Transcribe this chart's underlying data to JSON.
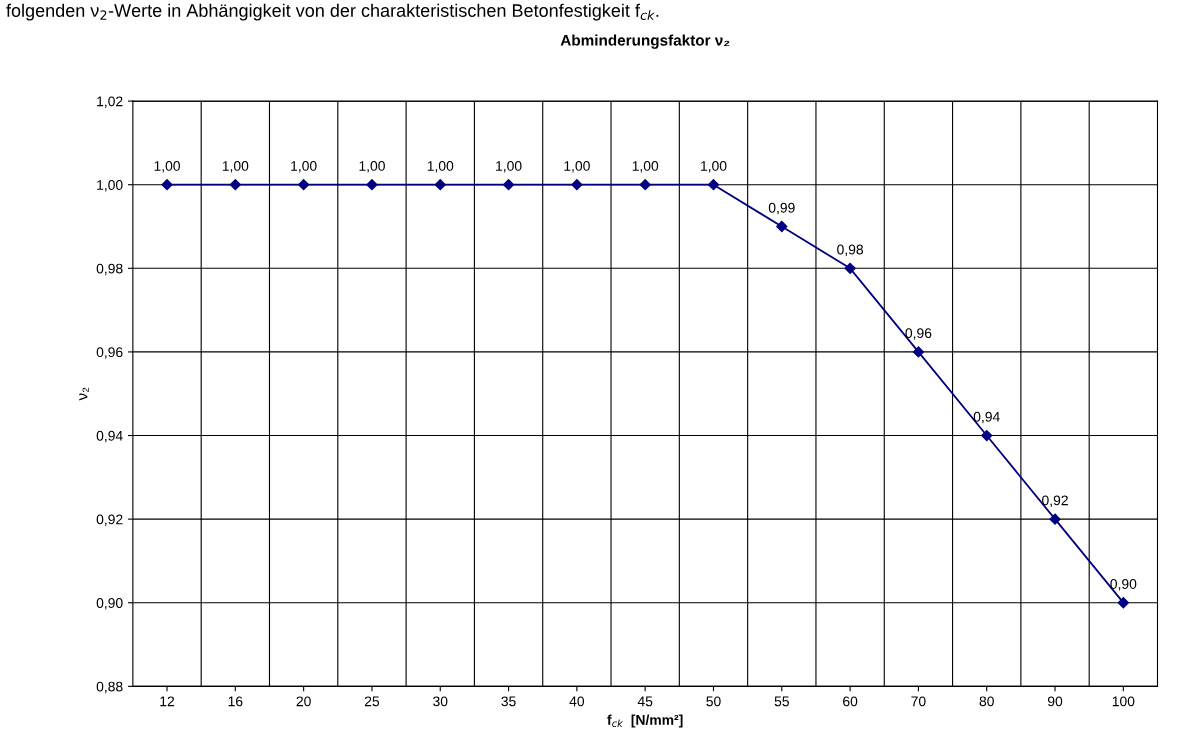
{
  "chart_data": {
    "type": "line",
    "title": "Abminderungsfaktor ν₂",
    "xlabel": "f$_{ck}$  [N/mm²]",
    "ylabel": "ν₂",
    "annotations": [
      "folgenden ν$_{2}$-Werte in Abhängigkeit von der charakteristischen Betonfestigkeit f$_{ck}$."
    ],
    "categories": [
      "12",
      "16",
      "20",
      "25",
      "30",
      "35",
      "40",
      "45",
      "50",
      "55",
      "60",
      "70",
      "80",
      "90",
      "100"
    ],
    "series": [
      {
        "color": "#000080",
        "values": [
          1.0,
          1.0,
          1.0,
          1.0,
          1.0,
          1.0,
          1.0,
          1.0,
          1.0,
          0.99,
          0.98,
          0.96,
          0.94,
          0.92,
          0.9
        ],
        "value_labels": [
          "1,00",
          "1,00",
          "1,00",
          "1,00",
          "1,00",
          "1,00",
          "1,00",
          "1,00",
          "1,00",
          "0,99",
          "0,98",
          "0,96",
          "0,94",
          "0,92",
          "0,90"
        ]
      }
    ],
    "ylim": [
      0.88,
      1.02
    ],
    "yticks": [
      {
        "value": 0.88,
        "label": "0,88"
      },
      {
        "value": 0.9,
        "label": "0,90"
      },
      {
        "value": 0.92,
        "label": "0,92"
      },
      {
        "value": 0.94,
        "label": "0,94"
      },
      {
        "value": 0.96,
        "label": "0,96"
      },
      {
        "value": 0.98,
        "label": "0,98"
      },
      {
        "value": 1.0,
        "label": "1,00"
      },
      {
        "value": 1.02,
        "label": "1,02"
      }
    ],
    "grid": true,
    "marker": "diamond",
    "line_style": "solid",
    "legend": false
  }
}
